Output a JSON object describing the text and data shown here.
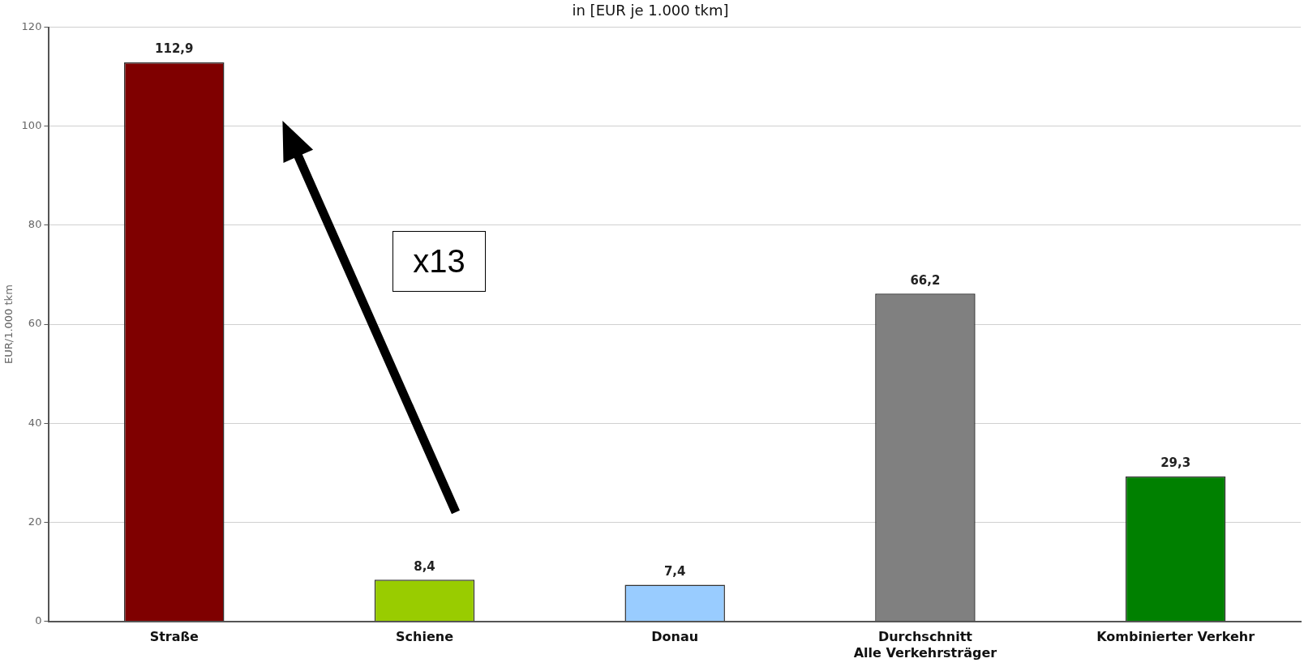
{
  "chart_data": {
    "type": "bar",
    "title": "in [EUR je 1.000 tkm]",
    "ylabel": "EUR/1.000 tkm",
    "categories": [
      "Straße",
      "Schiene",
      "Donau",
      "Durchschnitt Alle Verkehrsträger",
      "Kombinierter Verkehr"
    ],
    "values": [
      112.9,
      8.4,
      7.4,
      66.2,
      29.3
    ],
    "value_labels": [
      "112,9",
      "8,4",
      "7,4",
      "66,2",
      "29,3"
    ],
    "colors": [
      "#7f0000",
      "#99cc00",
      "#99ccff",
      "#808080",
      "#008000"
    ],
    "ylim": [
      0,
      120
    ],
    "yticks": [
      0,
      20,
      40,
      60,
      80,
      100,
      120
    ],
    "grid": "y",
    "legend": false,
    "annotations": [
      "x13"
    ]
  }
}
